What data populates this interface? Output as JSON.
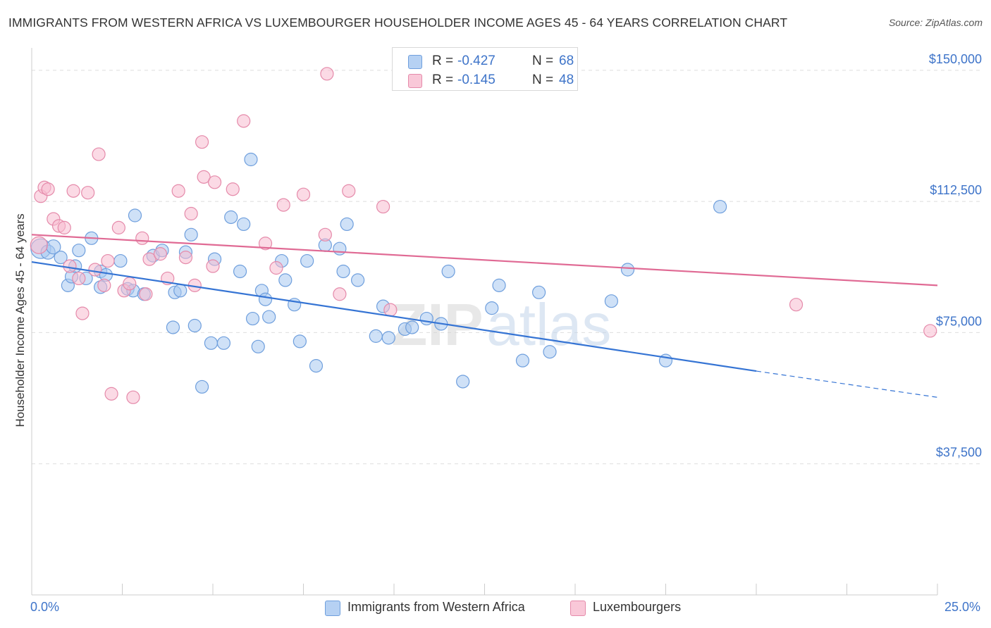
{
  "header": {
    "title": "IMMIGRANTS FROM WESTERN AFRICA VS LUXEMBOURGER HOUSEHOLDER INCOME AGES 45 - 64 YEARS CORRELATION CHART",
    "source": "Source: ZipAtlas.com"
  },
  "watermark": {
    "part1": "ZIP",
    "part2": "atlas"
  },
  "legend_top": {
    "rows": [
      {
        "r_label": "R =",
        "r_value": "-0.427",
        "n_label": "N =",
        "n_value": "68"
      },
      {
        "r_label": "R =",
        "r_value": "-0.145",
        "n_label": "N =",
        "n_value": "48"
      }
    ]
  },
  "legend_bottom": {
    "items": [
      {
        "label": "Immigrants from Western Africa"
      },
      {
        "label": "Luxembourgers"
      }
    ]
  },
  "x_axis": {
    "min_label": "0.0%",
    "max_label": "25.0%"
  },
  "colors": {
    "blue_fill": "#a8c8f0",
    "blue_stroke": "#6f9fdd",
    "blue_line": "#3574d4",
    "pink_fill": "#f7bcd0",
    "pink_stroke": "#e58aaa",
    "pink_line": "#e06a94",
    "tick_label": "#3e74c9",
    "grid": "#dddddd"
  },
  "chart_data": {
    "type": "scatter",
    "xlabel": "",
    "ylabel": "Householder Income Ages 45 - 64 years",
    "xlim": [
      0,
      25
    ],
    "ylim": [
      0,
      155000
    ],
    "y_ticks": [
      {
        "value": 37500,
        "label": "$37,500"
      },
      {
        "value": 75000,
        "label": "$75,000"
      },
      {
        "value": 112500,
        "label": "$112,500"
      },
      {
        "value": 150000,
        "label": "$150,000"
      }
    ],
    "grid": "horizontal dashed",
    "series": [
      {
        "name": "Immigrants from Western Africa",
        "color": "blue",
        "trend": {
          "x": [
            0,
            20
          ],
          "y": [
            95200,
            64000
          ],
          "dashed_to": [
            25,
            56500
          ]
        },
        "points": [
          [
            0.25,
            99000,
            14
          ],
          [
            0.45,
            98000,
            10
          ],
          [
            0.6,
            99500,
            10
          ],
          [
            0.8,
            96500,
            9
          ],
          [
            1.0,
            88500,
            9
          ],
          [
            1.1,
            91000,
            9
          ],
          [
            1.2,
            94000,
            9
          ],
          [
            1.3,
            98500,
            9
          ],
          [
            1.5,
            90500,
            9
          ],
          [
            1.9,
            92500,
            9
          ],
          [
            1.65,
            102000,
            9
          ],
          [
            1.9,
            88000,
            9
          ],
          [
            2.05,
            91500,
            9
          ],
          [
            2.45,
            95500,
            9
          ],
          [
            2.65,
            87500,
            9
          ],
          [
            2.8,
            87000,
            9
          ],
          [
            2.85,
            108500,
            9
          ],
          [
            3.1,
            86000,
            9
          ],
          [
            3.35,
            97000,
            9
          ],
          [
            3.6,
            98500,
            9
          ],
          [
            3.9,
            76500,
            9
          ],
          [
            3.95,
            86500,
            9
          ],
          [
            4.1,
            87000,
            9
          ],
          [
            4.25,
            98000,
            9
          ],
          [
            4.4,
            103000,
            9
          ],
          [
            4.5,
            77000,
            9
          ],
          [
            4.7,
            59500,
            9
          ],
          [
            4.95,
            72000,
            9
          ],
          [
            5.05,
            96000,
            9
          ],
          [
            5.3,
            72000,
            9
          ],
          [
            5.5,
            108000,
            9
          ],
          [
            5.75,
            92500,
            9
          ],
          [
            5.85,
            106000,
            9
          ],
          [
            6.05,
            124500,
            9
          ],
          [
            6.35,
            87000,
            9
          ],
          [
            6.45,
            84500,
            9
          ],
          [
            6.55,
            79500,
            9
          ],
          [
            6.9,
            95500,
            9
          ],
          [
            7.0,
            90000,
            9
          ],
          [
            7.25,
            83000,
            9
          ],
          [
            7.4,
            72500,
            9
          ],
          [
            7.6,
            95500,
            9
          ],
          [
            7.85,
            65500,
            9
          ],
          [
            8.1,
            100000,
            9
          ],
          [
            8.5,
            99000,
            9
          ],
          [
            8.6,
            92500,
            9
          ],
          [
            8.7,
            106000,
            9
          ],
          [
            9.0,
            90000,
            9
          ],
          [
            9.5,
            74000,
            9
          ],
          [
            9.7,
            82500,
            9
          ],
          [
            9.85,
            73500,
            9
          ],
          [
            10.3,
            76000,
            9
          ],
          [
            10.5,
            76500,
            9
          ],
          [
            10.9,
            79000,
            9
          ],
          [
            11.3,
            77500,
            9
          ],
          [
            11.5,
            92500,
            9
          ],
          [
            11.9,
            61000,
            9
          ],
          [
            12.7,
            82000,
            9
          ],
          [
            12.9,
            88500,
            9
          ],
          [
            13.55,
            67000,
            9
          ],
          [
            14.0,
            86500,
            9
          ],
          [
            14.3,
            69500,
            9
          ],
          [
            16.0,
            84000,
            9
          ],
          [
            16.45,
            93000,
            9
          ],
          [
            17.5,
            67000,
            9
          ],
          [
            19.0,
            111000,
            9
          ],
          [
            6.1,
            79000,
            9
          ],
          [
            6.25,
            71000,
            9
          ]
        ]
      },
      {
        "name": "Luxembourgers",
        "color": "pink",
        "trend": {
          "x": [
            0,
            25
          ],
          "y": [
            103000,
            88500
          ]
        },
        "points": [
          [
            0.2,
            100000,
            12
          ],
          [
            0.25,
            114000,
            9
          ],
          [
            0.35,
            116500,
            9
          ],
          [
            0.45,
            116000,
            9
          ],
          [
            0.6,
            107500,
            9
          ],
          [
            0.75,
            105500,
            9
          ],
          [
            0.9,
            105000,
            9
          ],
          [
            1.05,
            94000,
            9
          ],
          [
            1.15,
            115500,
            9
          ],
          [
            1.3,
            90500,
            9
          ],
          [
            1.4,
            80500,
            9
          ],
          [
            1.55,
            115000,
            9
          ],
          [
            1.75,
            93000,
            9
          ],
          [
            1.85,
            126000,
            9
          ],
          [
            2.0,
            88500,
            9
          ],
          [
            2.1,
            95500,
            9
          ],
          [
            2.2,
            57500,
            9
          ],
          [
            2.4,
            105000,
            9
          ],
          [
            2.55,
            87000,
            9
          ],
          [
            2.7,
            89000,
            9
          ],
          [
            2.8,
            56500,
            9
          ],
          [
            3.05,
            102000,
            9
          ],
          [
            3.15,
            86000,
            9
          ],
          [
            3.25,
            96000,
            9
          ],
          [
            3.55,
            97500,
            9
          ],
          [
            3.75,
            90500,
            9
          ],
          [
            4.05,
            115500,
            9
          ],
          [
            4.25,
            96500,
            9
          ],
          [
            4.4,
            109000,
            9
          ],
          [
            4.5,
            88500,
            9
          ],
          [
            4.7,
            129500,
            9
          ],
          [
            4.75,
            119500,
            9
          ],
          [
            5.0,
            94000,
            9
          ],
          [
            5.05,
            118000,
            9
          ],
          [
            5.55,
            116000,
            9
          ],
          [
            5.85,
            135500,
            9
          ],
          [
            6.45,
            100500,
            9
          ],
          [
            6.75,
            93500,
            9
          ],
          [
            6.95,
            111500,
            9
          ],
          [
            7.5,
            114500,
            9
          ],
          [
            8.1,
            103000,
            9
          ],
          [
            8.15,
            149000,
            9
          ],
          [
            8.5,
            86000,
            9
          ],
          [
            8.75,
            115500,
            9
          ],
          [
            9.7,
            111000,
            9
          ],
          [
            9.9,
            81500,
            9
          ],
          [
            21.1,
            83000,
            9
          ],
          [
            24.8,
            75500,
            9
          ]
        ]
      }
    ]
  }
}
